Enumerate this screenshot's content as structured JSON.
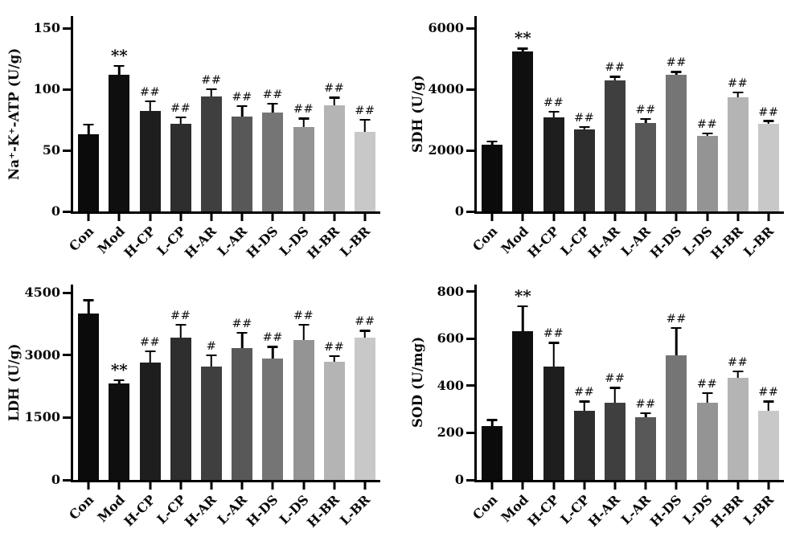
{
  "figure": {
    "background": "#ffffff",
    "axis_color": "#000000",
    "error_bar_color": "#000000",
    "bar_colors": [
      "#0b0b0b",
      "#0f0f0f",
      "#1e1e1e",
      "#2e2e2e",
      "#3f3f3f",
      "#585858",
      "#757575",
      "#949494",
      "#b4b4b4",
      "#c8c8c8"
    ],
    "significance_marks": {
      "vs_control": "**",
      "vs_model_strong": "##",
      "vs_model_weak": "#"
    }
  },
  "chart_data": [
    {
      "id": "na-k-atp",
      "type": "bar",
      "title": "",
      "xlabel": "",
      "ylabel": "Na⁺-K⁺-ATP (U/g)",
      "categories": [
        "Con",
        "Mod",
        "H-CP",
        "L-CP",
        "H-AR",
        "L-AR",
        "H-DS",
        "L-DS",
        "H-BR",
        "L-BR"
      ],
      "values": [
        63,
        112,
        82,
        72,
        94,
        78,
        81,
        69,
        87,
        65
      ],
      "errors": [
        9,
        8,
        9,
        6,
        7,
        9,
        8,
        8,
        7,
        11
      ],
      "annotations": [
        "",
        "**",
        "##",
        "##",
        "##",
        "##",
        "##",
        "##",
        "##",
        "##"
      ],
      "yticks": [
        0,
        50,
        100,
        150
      ],
      "ylim": [
        0,
        160
      ],
      "grid": false,
      "legend": "none"
    },
    {
      "id": "sdh",
      "type": "bar",
      "title": "",
      "xlabel": "",
      "ylabel": "SDH (U/g)",
      "categories": [
        "Con",
        "Mod",
        "H-CP",
        "L-CP",
        "H-AR",
        "L-AR",
        "H-DS",
        "L-DS",
        "H-BR",
        "L-BR"
      ],
      "values": [
        2180,
        5250,
        3070,
        2680,
        4300,
        2900,
        4480,
        2480,
        3750,
        2880
      ],
      "errors": [
        150,
        120,
        230,
        120,
        150,
        160,
        120,
        110,
        180,
        110
      ],
      "annotations": [
        "",
        "**",
        "##",
        "##",
        "##",
        "##",
        "##",
        "##",
        "##",
        "##"
      ],
      "yticks": [
        0,
        2000,
        4000,
        6000
      ],
      "ylim": [
        0,
        6400
      ],
      "grid": false,
      "legend": "none"
    },
    {
      "id": "ldh",
      "type": "bar",
      "title": "",
      "xlabel": "",
      "ylabel": "LDH (U/g)",
      "categories": [
        "Con",
        "Mod",
        "H-CP",
        "L-CP",
        "H-AR",
        "L-AR",
        "H-DS",
        "L-DS",
        "H-BR",
        "L-BR"
      ],
      "values": [
        4000,
        2330,
        2830,
        3430,
        2720,
        3180,
        2930,
        3360,
        2840,
        3430
      ],
      "errors": [
        350,
        90,
        290,
        330,
        300,
        380,
        300,
        400,
        160,
        180
      ],
      "annotations": [
        "",
        "**",
        "##",
        "##",
        "#",
        "##",
        "##",
        "##",
        "##",
        "##"
      ],
      "yticks": [
        0,
        1500,
        3000,
        4500
      ],
      "ylim": [
        0,
        4700
      ],
      "grid": false,
      "legend": "none"
    },
    {
      "id": "sod",
      "type": "bar",
      "title": "",
      "xlabel": "",
      "ylabel": "SOD (U/mg)",
      "categories": [
        "Con",
        "Mod",
        "H-CP",
        "L-CP",
        "H-AR",
        "L-AR",
        "H-DS",
        "L-DS",
        "H-BR",
        "L-BR"
      ],
      "values": [
        228,
        632,
        482,
        293,
        328,
        268,
        528,
        328,
        435,
        295
      ],
      "errors": [
        30,
        110,
        105,
        45,
        68,
        20,
        122,
        45,
        30,
        42
      ],
      "annotations": [
        "",
        "**",
        "##",
        "##",
        "##",
        "##",
        "##",
        "##",
        "##",
        "##"
      ],
      "yticks": [
        0,
        200,
        400,
        600,
        800
      ],
      "ylim": [
        0,
        830
      ],
      "grid": false,
      "legend": "none"
    }
  ]
}
